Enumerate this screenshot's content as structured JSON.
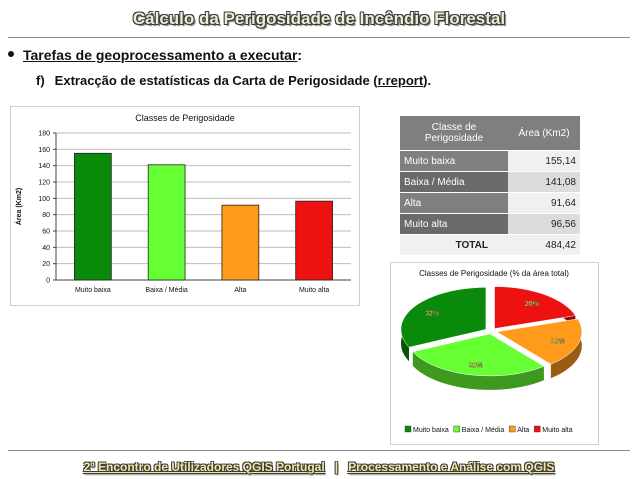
{
  "slide": {
    "title": "Cálculo da Perigosidade de Incêndio Florestal",
    "bullet_text": "Tarefas de geoprocessamento a executar",
    "bullet_colon": ":",
    "sub_label": "f)",
    "sub_text": "Extracção de estatísticas da Carta de Perigosidade (",
    "sub_link": "r.report",
    "sub_end": ").",
    "footer_left": "2º Encontro de Utilizadores QGIS Portugal",
    "footer_sep": "|",
    "footer_right": "Processamento e Análise com QGIS"
  },
  "table": {
    "header_class": "Classe de Perigosidade",
    "header_area": "Área (Km2)",
    "rows": [
      {
        "label": "Muito baixa",
        "value": "155,14"
      },
      {
        "label": "Baixa / Média",
        "value": "141,08"
      },
      {
        "label": "Alta",
        "value": "91,64"
      },
      {
        "label": "Muito alta",
        "value": "96,56"
      }
    ],
    "total_label": "TOTAL",
    "total_value": "484,42"
  },
  "colors": {
    "muito_baixa": "#0a8a0a",
    "baixa_media": "#66ff33",
    "alta": "#ff9a1a",
    "muito_alta": "#ee1111"
  },
  "chart_data": [
    {
      "type": "bar",
      "title": "Classes de Perigosidade",
      "xlabel": "",
      "ylabel": "Área (Km2)",
      "categories": [
        "Muito baixa",
        "Baixa / Média",
        "Alta",
        "Muito alta"
      ],
      "values": [
        155.14,
        141.08,
        91.64,
        96.56
      ],
      "ylim": [
        0,
        180
      ],
      "yticks": [
        0,
        20,
        40,
        60,
        80,
        100,
        120,
        140,
        160,
        180
      ],
      "grid": true,
      "legend": "none"
    },
    {
      "type": "pie",
      "title": "Classes de Perigosidade (% da área total)",
      "categories": [
        "Muito baixa",
        "Baixa / Média",
        "Alta",
        "Muito alta"
      ],
      "values": [
        32,
        29,
        19,
        20
      ],
      "labels": [
        "32%",
        "29%",
        "19%",
        "20%"
      ],
      "legend": "bottom"
    }
  ]
}
